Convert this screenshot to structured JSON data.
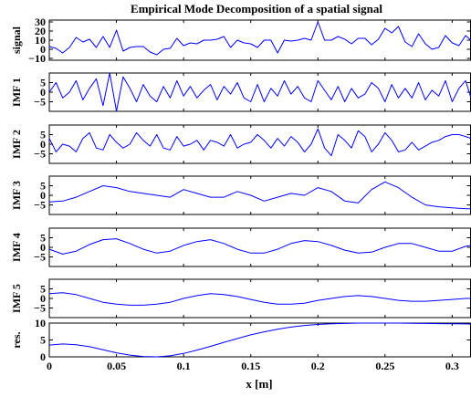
{
  "chart_data": {
    "type": "line",
    "title": "Empirical Mode Decomposition of a spatial signal",
    "xlabel": "x [m]",
    "xlim": [
      0,
      0.314
    ],
    "xticks": [
      0,
      0.05,
      0.1,
      0.15,
      0.2,
      0.25,
      0.3
    ],
    "xtick_labels": [
      "0",
      "0.05",
      "0.1",
      "0.15",
      "0.2",
      "0.25",
      "0.3"
    ],
    "color": "#0000ff",
    "panels": [
      {
        "ylabel": "signal",
        "ylim": [
          -12,
          32
        ],
        "yticks": [
          -10,
          0,
          10,
          20,
          30
        ],
        "ytick_labels": [
          "−10",
          "0",
          "10",
          "20",
          "30"
        ],
        "x": [
          0,
          0.005,
          0.01,
          0.015,
          0.02,
          0.025,
          0.03,
          0.035,
          0.04,
          0.045,
          0.05,
          0.055,
          0.06,
          0.065,
          0.07,
          0.075,
          0.08,
          0.085,
          0.09,
          0.095,
          0.1,
          0.105,
          0.11,
          0.115,
          0.12,
          0.125,
          0.13,
          0.135,
          0.14,
          0.145,
          0.15,
          0.155,
          0.16,
          0.165,
          0.17,
          0.175,
          0.18,
          0.185,
          0.19,
          0.195,
          0.2,
          0.205,
          0.21,
          0.215,
          0.22,
          0.225,
          0.23,
          0.235,
          0.24,
          0.245,
          0.25,
          0.255,
          0.26,
          0.265,
          0.27,
          0.275,
          0.28,
          0.285,
          0.29,
          0.295,
          0.3,
          0.305,
          0.31,
          0.314
        ],
        "y": [
          3,
          1,
          -4,
          2,
          13,
          8,
          11,
          2,
          14,
          2,
          21,
          -2,
          2,
          3,
          3,
          -3,
          -6,
          0,
          1,
          12,
          4,
          7,
          6,
          10,
          10,
          11,
          14,
          2,
          10,
          7,
          6,
          2,
          10,
          10,
          -4,
          10,
          9,
          10,
          12,
          10,
          30,
          10,
          10,
          14,
          11,
          6,
          12,
          12,
          5,
          11,
          23,
          18,
          25,
          8,
          3,
          17,
          6,
          0,
          2,
          15,
          7,
          4,
          15,
          10
        ]
      },
      {
        "ylabel": "IMF 1",
        "ylim": [
          -10,
          10
        ],
        "yticks": [
          -5,
          0,
          5
        ],
        "ytick_labels": [
          "−5",
          "0",
          "5"
        ],
        "x": [
          0,
          0.005,
          0.01,
          0.015,
          0.02,
          0.025,
          0.03,
          0.035,
          0.04,
          0.045,
          0.05,
          0.055,
          0.06,
          0.065,
          0.07,
          0.075,
          0.08,
          0.085,
          0.09,
          0.095,
          0.1,
          0.105,
          0.11,
          0.115,
          0.12,
          0.125,
          0.13,
          0.135,
          0.14,
          0.145,
          0.15,
          0.155,
          0.16,
          0.165,
          0.17,
          0.175,
          0.18,
          0.185,
          0.19,
          0.195,
          0.2,
          0.205,
          0.21,
          0.215,
          0.22,
          0.225,
          0.23,
          0.235,
          0.24,
          0.245,
          0.25,
          0.255,
          0.26,
          0.265,
          0.27,
          0.275,
          0.28,
          0.285,
          0.29,
          0.295,
          0.3,
          0.305,
          0.31,
          0.314
        ],
        "y": [
          0,
          5,
          -3,
          0,
          6,
          -4,
          2,
          7,
          -7,
          10,
          -10,
          8,
          2,
          -5,
          4,
          -2,
          -5,
          3,
          -3,
          6,
          -2,
          3,
          -3,
          1,
          4,
          -4,
          3,
          -1,
          5,
          -3,
          -5,
          4,
          -5,
          2,
          -2,
          6,
          -1,
          3,
          -3,
          -5,
          6,
          1,
          -4,
          3,
          -5,
          2,
          -3,
          -1,
          5,
          2,
          -5,
          4,
          -3,
          2,
          -3,
          5,
          -4,
          1,
          -2,
          6,
          -5,
          2,
          6,
          -3
        ]
      },
      {
        "ylabel": "IMF 2",
        "ylim": [
          -10,
          10
        ],
        "yticks": [
          -5,
          0,
          5
        ],
        "ytick_labels": [
          "−5",
          "0",
          "5"
        ],
        "x": [
          0,
          0.005,
          0.01,
          0.015,
          0.02,
          0.025,
          0.03,
          0.035,
          0.04,
          0.045,
          0.05,
          0.055,
          0.06,
          0.065,
          0.07,
          0.075,
          0.08,
          0.085,
          0.09,
          0.095,
          0.1,
          0.105,
          0.11,
          0.115,
          0.12,
          0.125,
          0.13,
          0.135,
          0.14,
          0.145,
          0.15,
          0.155,
          0.16,
          0.165,
          0.17,
          0.175,
          0.18,
          0.185,
          0.19,
          0.195,
          0.2,
          0.205,
          0.21,
          0.215,
          0.22,
          0.225,
          0.23,
          0.235,
          0.24,
          0.245,
          0.25,
          0.255,
          0.26,
          0.265,
          0.27,
          0.275,
          0.28,
          0.285,
          0.29,
          0.295,
          0.3,
          0.305,
          0.31,
          0.314
        ],
        "y": [
          3,
          -4,
          0,
          -1,
          -4,
          3,
          6,
          -2,
          -3,
          5,
          1,
          -2,
          0,
          6,
          2,
          -1,
          5,
          -2,
          -3,
          4,
          -1,
          0,
          2,
          -3,
          2,
          1,
          -1,
          5,
          -2,
          0,
          1,
          5,
          2,
          -2,
          3,
          -1,
          4,
          1,
          -4,
          0,
          8,
          -2,
          -6,
          5,
          2,
          -2,
          7,
          4,
          -4,
          0,
          6,
          2,
          -4,
          -3,
          1,
          -3,
          -1,
          1,
          2,
          4,
          5,
          5,
          4,
          3
        ]
      },
      {
        "ylabel": "IMF 3",
        "ylim": [
          -10,
          10
        ],
        "yticks": [
          -5,
          0,
          5
        ],
        "ytick_labels": [
          "−5",
          "0",
          "5"
        ],
        "x": [
          0,
          0.01,
          0.02,
          0.03,
          0.04,
          0.05,
          0.06,
          0.07,
          0.08,
          0.09,
          0.1,
          0.11,
          0.12,
          0.13,
          0.14,
          0.15,
          0.16,
          0.17,
          0.18,
          0.19,
          0.2,
          0.21,
          0.22,
          0.23,
          0.24,
          0.25,
          0.26,
          0.27,
          0.28,
          0.29,
          0.3,
          0.31,
          0.314
        ],
        "y": [
          -3.5,
          -3,
          -1,
          2,
          5,
          4,
          2,
          1,
          0,
          -1,
          3,
          1,
          -1,
          -1,
          2,
          0,
          -3,
          -1,
          1,
          0,
          4,
          2,
          -3,
          -4,
          3,
          7,
          4,
          -1,
          -5,
          -6,
          -6.5,
          -7,
          -7
        ]
      },
      {
        "ylabel": "IMF 4",
        "ylim": [
          -10,
          10
        ],
        "yticks": [
          -5,
          0,
          5
        ],
        "ytick_labels": [
          "−5",
          "0",
          "5"
        ],
        "x": [
          0,
          0.01,
          0.02,
          0.03,
          0.04,
          0.05,
          0.06,
          0.07,
          0.08,
          0.09,
          0.1,
          0.11,
          0.12,
          0.13,
          0.14,
          0.15,
          0.16,
          0.17,
          0.18,
          0.19,
          0.2,
          0.21,
          0.22,
          0.23,
          0.24,
          0.25,
          0.26,
          0.27,
          0.28,
          0.29,
          0.3,
          0.31,
          0.314
        ],
        "y": [
          -1,
          -3.5,
          -2,
          1.5,
          4,
          4.5,
          2,
          -1,
          -3,
          -2,
          1,
          3,
          4,
          2,
          -1,
          -3,
          -3,
          -1,
          2,
          3.5,
          3,
          1,
          -1.5,
          -3,
          -2.5,
          0,
          2,
          2,
          0,
          -2,
          -2,
          0.5,
          1
        ]
      },
      {
        "ylabel": "IMF 5",
        "ylim": [
          -10,
          10
        ],
        "yticks": [
          -5,
          0,
          5
        ],
        "ytick_labels": [
          "−5",
          "0",
          "5"
        ],
        "x": [
          0,
          0.01,
          0.02,
          0.03,
          0.04,
          0.05,
          0.06,
          0.07,
          0.08,
          0.09,
          0.1,
          0.11,
          0.12,
          0.13,
          0.14,
          0.15,
          0.16,
          0.17,
          0.18,
          0.19,
          0.2,
          0.21,
          0.22,
          0.23,
          0.24,
          0.25,
          0.26,
          0.27,
          0.28,
          0.29,
          0.3,
          0.31,
          0.314
        ],
        "y": [
          2.5,
          3,
          2,
          0,
          -2,
          -3,
          -3.5,
          -3.5,
          -3,
          -2,
          0,
          1.5,
          2.5,
          2,
          1,
          -0.5,
          -2,
          -3,
          -3,
          -2.5,
          -1,
          0,
          1,
          1.5,
          1,
          0,
          -1,
          -1.5,
          -1.5,
          -1,
          -0.5,
          0,
          0
        ]
      },
      {
        "ylabel": "res.",
        "ylim": [
          0,
          10
        ],
        "yticks": [
          0,
          5,
          10
        ],
        "ytick_labels": [
          "0",
          "5",
          "10"
        ],
        "x": [
          0,
          0.01,
          0.02,
          0.03,
          0.04,
          0.05,
          0.06,
          0.07,
          0.08,
          0.09,
          0.1,
          0.11,
          0.12,
          0.13,
          0.14,
          0.15,
          0.16,
          0.17,
          0.18,
          0.19,
          0.2,
          0.21,
          0.22,
          0.23,
          0.24,
          0.25,
          0.26,
          0.27,
          0.28,
          0.29,
          0.3,
          0.31,
          0.314
        ],
        "y": [
          3.5,
          3.8,
          3.6,
          3.0,
          2.1,
          1.2,
          0.5,
          0.1,
          0.0,
          0.3,
          1.0,
          2.0,
          3.1,
          4.3,
          5.4,
          6.5,
          7.4,
          8.2,
          8.8,
          9.3,
          9.6,
          9.8,
          9.9,
          10.0,
          10.0,
          10.0,
          10.0,
          9.95,
          9.9,
          9.85,
          9.8,
          9.75,
          9.7
        ]
      }
    ]
  }
}
